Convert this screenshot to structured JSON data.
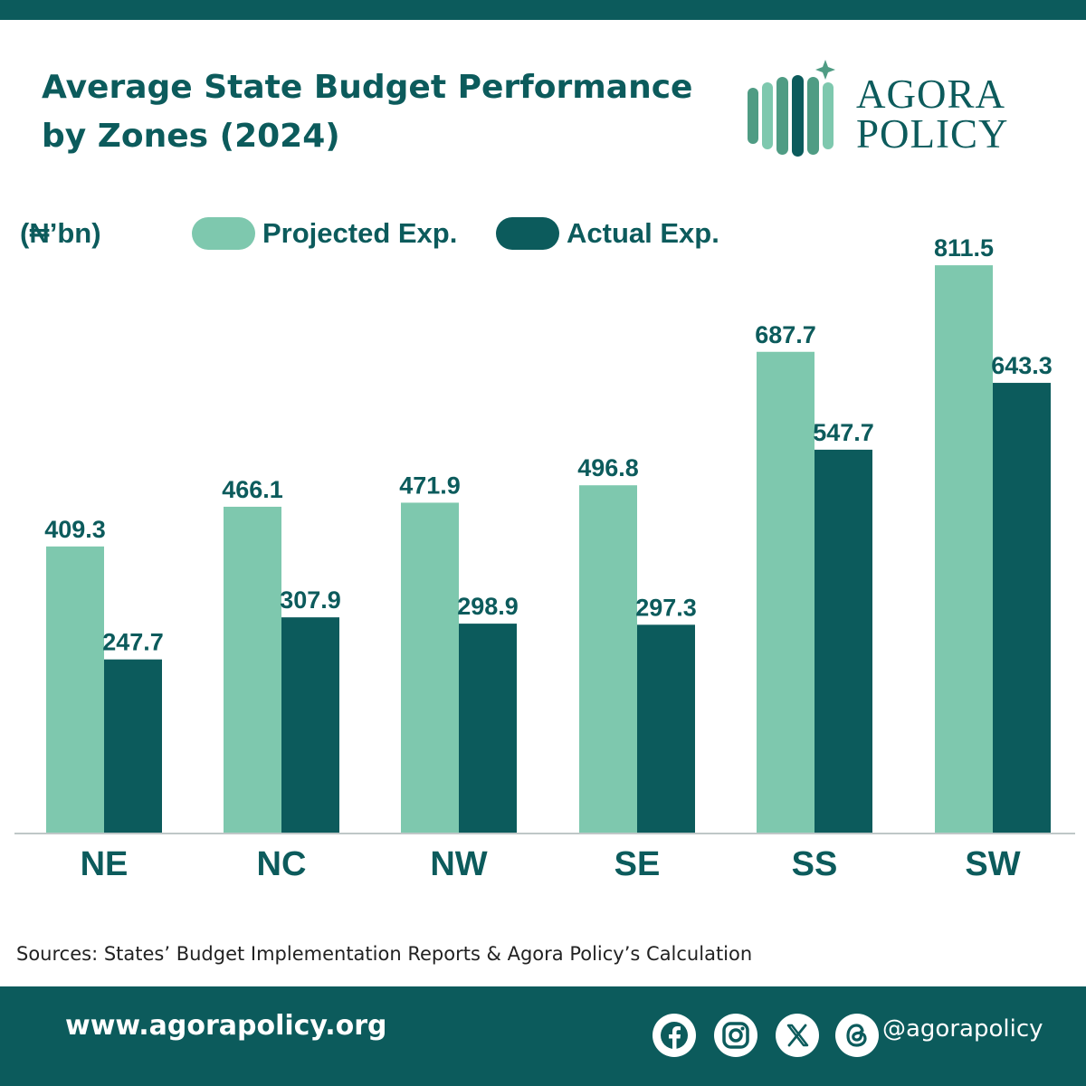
{
  "header": {
    "title_line1": "Average State Budget Performance",
    "title_line2": "by  Zones (2024)"
  },
  "brand": {
    "name_line1": "AGORA",
    "name_line2": "POLICY",
    "logo_icon": "agora-policy-logo-icon"
  },
  "colors": {
    "primary": "#0c5b5c",
    "projected": "#7ec8ae",
    "actual": "#0c5b5c",
    "text": "#0c5b5c"
  },
  "chart_data": {
    "type": "bar",
    "title": "Average State Budget Performance by  Zones (2024)",
    "ylabel": "(₦’bn)",
    "xlabel": "",
    "ylim": [
      0,
      850
    ],
    "grid": false,
    "legend_position": "top",
    "categories": [
      "NE",
      "NC",
      "NW",
      "SE",
      "SS",
      "SW"
    ],
    "series": [
      {
        "name": "Projected Exp.",
        "values": [
          409.3,
          466.1,
          471.9,
          496.8,
          687.7,
          811.5
        ],
        "labels": [
          "409.3",
          "466.1",
          "471.9",
          "496.8",
          "687.7",
          "811.5"
        ]
      },
      {
        "name": "Actual Exp.",
        "values": [
          247.7,
          307.9,
          298.9,
          297.3,
          547.7,
          643.3
        ],
        "labels": [
          "247.7",
          "307.9",
          "298.9",
          "297.3",
          "547.7",
          "643.3"
        ]
      }
    ]
  },
  "footer": {
    "source": "Sources: States’ Budget Implementation Reports & Agora Policy’s Calculation",
    "website": "www.agorapolicy.org",
    "handle": "@agorapolicy",
    "social_icons": [
      "facebook-icon",
      "instagram-icon",
      "x-icon",
      "threads-icon"
    ]
  }
}
